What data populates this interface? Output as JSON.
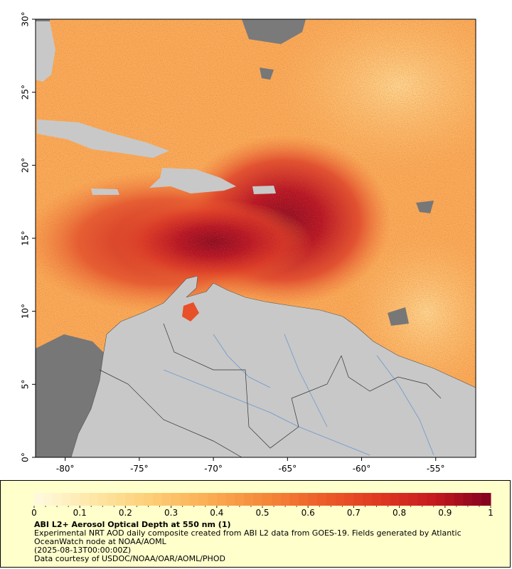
{
  "map": {
    "xlim": [
      -82,
      -52.3
    ],
    "ylim": [
      0,
      30
    ],
    "xticks": [
      {
        "value": -80,
        "label": "-80°"
      },
      {
        "value": -75,
        "label": "-75°"
      },
      {
        "value": -70,
        "label": "-70°"
      },
      {
        "value": -65,
        "label": "-65°"
      },
      {
        "value": -60,
        "label": "-60°"
      },
      {
        "value": -55,
        "label": "-55°"
      }
    ],
    "yticks": [
      {
        "value": 0,
        "label": "0°"
      },
      {
        "value": 5,
        "label": "5°"
      },
      {
        "value": 10,
        "label": "10°"
      },
      {
        "value": 15,
        "label": "15°"
      },
      {
        "value": 20,
        "label": "20°"
      },
      {
        "value": 25,
        "label": "25°"
      },
      {
        "value": 30,
        "label": "30°"
      }
    ]
  },
  "colorbar": {
    "range": [
      0,
      1
    ],
    "ticks": [
      0,
      0.1,
      0.2,
      0.3,
      0.4,
      0.5,
      0.6,
      0.7,
      0.8,
      0.9,
      1
    ],
    "colors": [
      "#fffbe0",
      "#fee8a8",
      "#fdcf78",
      "#fbb055",
      "#f68a3a",
      "#ee5f2a",
      "#e03a22",
      "#c61a1e",
      "#800020"
    ]
  },
  "caption": {
    "title": "ABI L2+ Aerosol Optical Depth at 550 nm (1)",
    "description": "Experimental NRT AOD daily composite created from ABI L2 data from GOES-19. Fields generated by Atlantic OceanWatch node at NOAA/AOML",
    "date": "(2025-08-13T00:00:00Z)",
    "credit": "Data courtesy of USDOC/NOAA/OAR/AOML/PHOD"
  }
}
